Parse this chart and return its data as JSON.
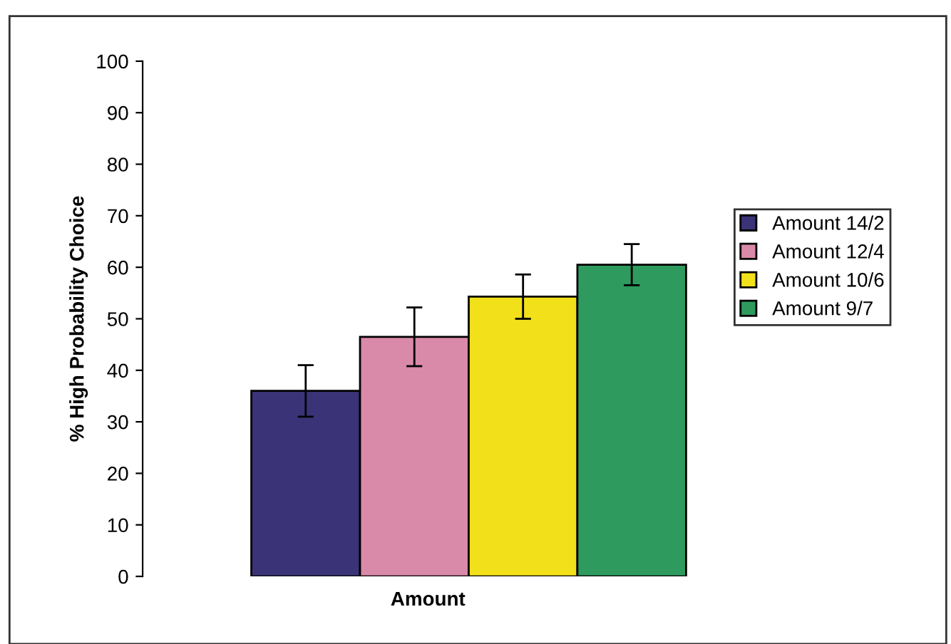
{
  "chart_data": {
    "type": "bar",
    "xlabel": "Amount",
    "ylabel": "% High Probability Choice",
    "categories": [
      null
    ],
    "series": [
      {
        "name": "Amount 14/2",
        "color": "#3b3378",
        "values": [
          36
        ],
        "errors": [
          5
        ]
      },
      {
        "name": "Amount 12/4",
        "color": "#d98aa8",
        "values": [
          46.5
        ],
        "errors": [
          5.7
        ]
      },
      {
        "name": "Amount 10/6",
        "color": "#f2e01a",
        "values": [
          54.3
        ],
        "errors": [
          4.3
        ]
      },
      {
        "name": "Amount 9/7",
        "color": "#2e9a5e",
        "values": [
          60.5
        ],
        "errors": [
          4
        ]
      }
    ],
    "ylim": [
      0,
      100
    ],
    "yticks": [
      0,
      10,
      20,
      30,
      40,
      50,
      60,
      70,
      80,
      90,
      100
    ],
    "grid": false,
    "legend": "right"
  }
}
